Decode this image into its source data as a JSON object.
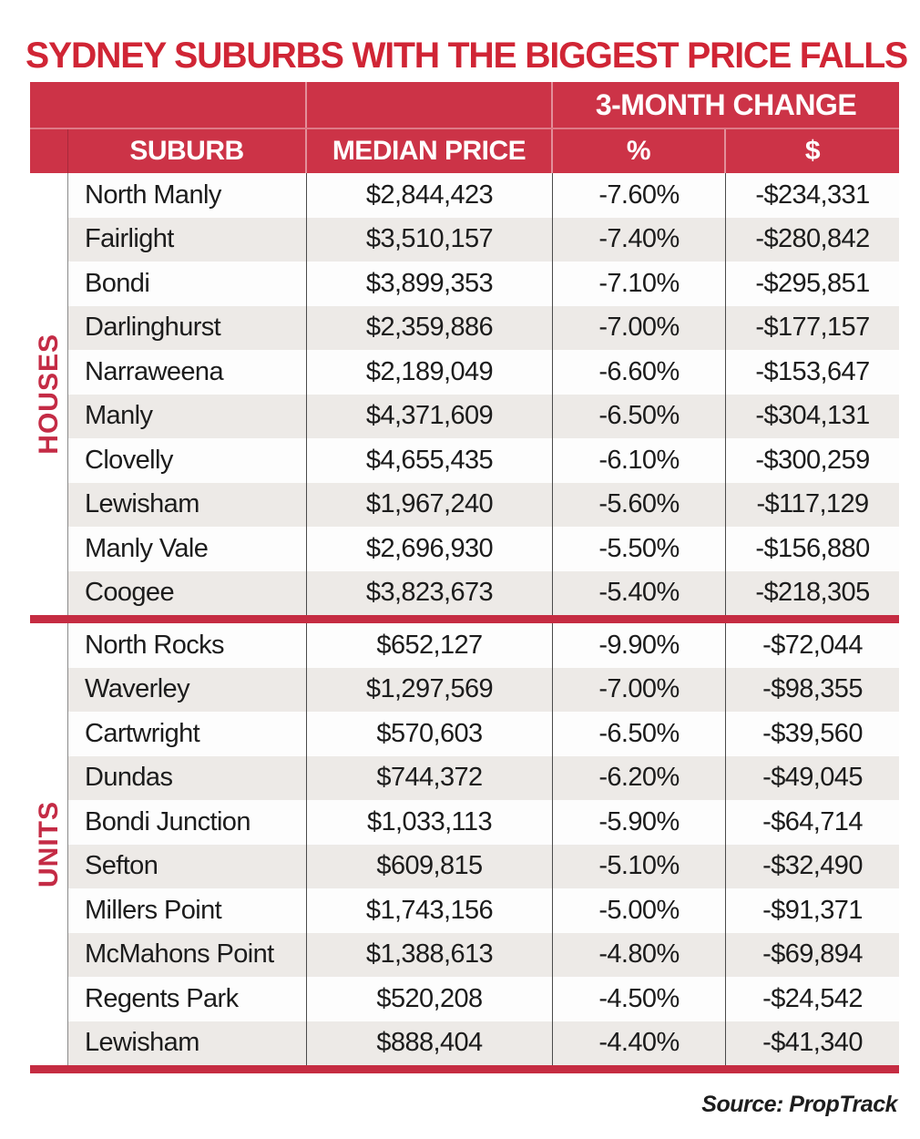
{
  "title": "SYDNEY SUBURBS WITH THE BIGGEST PRICE FALLS",
  "source": "Source: PropTrack",
  "colors": {
    "title_red": "#d02535",
    "header_red": "#cc3347",
    "bar_red": "#c52c42",
    "section_label_red": "#c42b45",
    "row_alt_grey": "#edeae7",
    "text_dark": "#1c1c1c"
  },
  "chart_data": {
    "type": "table",
    "title": "SYDNEY SUBURBS WITH THE BIGGEST PRICE FALLS",
    "headers": {
      "suburb": "SUBURB",
      "median_price": "MEDIAN PRICE",
      "change_group": "3-MONTH CHANGE",
      "pct": "%",
      "dollar": "$"
    },
    "sections": [
      {
        "label": "HOUSES",
        "rows": [
          {
            "suburb": "North Manly",
            "median_price": "$2,844,423",
            "pct_change": "-7.60%",
            "dollar_change": "-$234,331"
          },
          {
            "suburb": "Fairlight",
            "median_price": "$3,510,157",
            "pct_change": "-7.40%",
            "dollar_change": "-$280,842"
          },
          {
            "suburb": "Bondi",
            "median_price": "$3,899,353",
            "pct_change": "-7.10%",
            "dollar_change": "-$295,851"
          },
          {
            "suburb": "Darlinghurst",
            "median_price": "$2,359,886",
            "pct_change": "-7.00%",
            "dollar_change": "-$177,157"
          },
          {
            "suburb": "Narraweena",
            "median_price": "$2,189,049",
            "pct_change": "-6.60%",
            "dollar_change": "-$153,647"
          },
          {
            "suburb": "Manly",
            "median_price": "$4,371,609",
            "pct_change": "-6.50%",
            "dollar_change": "-$304,131"
          },
          {
            "suburb": "Clovelly",
            "median_price": "$4,655,435",
            "pct_change": "-6.10%",
            "dollar_change": "-$300,259"
          },
          {
            "suburb": "Lewisham",
            "median_price": "$1,967,240",
            "pct_change": "-5.60%",
            "dollar_change": "-$117,129"
          },
          {
            "suburb": "Manly Vale",
            "median_price": "$2,696,930",
            "pct_change": "-5.50%",
            "dollar_change": "-$156,880"
          },
          {
            "suburb": "Coogee",
            "median_price": "$3,823,673",
            "pct_change": "-5.40%",
            "dollar_change": "-$218,305"
          }
        ]
      },
      {
        "label": "UNITS",
        "rows": [
          {
            "suburb": "North Rocks",
            "median_price": "$652,127",
            "pct_change": "-9.90%",
            "dollar_change": "-$72,044"
          },
          {
            "suburb": "Waverley",
            "median_price": "$1,297,569",
            "pct_change": "-7.00%",
            "dollar_change": "-$98,355"
          },
          {
            "suburb": "Cartwright",
            "median_price": "$570,603",
            "pct_change": "-6.50%",
            "dollar_change": "-$39,560"
          },
          {
            "suburb": "Dundas",
            "median_price": "$744,372",
            "pct_change": "-6.20%",
            "dollar_change": "-$49,045"
          },
          {
            "suburb": "Bondi Junction",
            "median_price": "$1,033,113",
            "pct_change": "-5.90%",
            "dollar_change": "-$64,714"
          },
          {
            "suburb": "Sefton",
            "median_price": "$609,815",
            "pct_change": "-5.10%",
            "dollar_change": "-$32,490"
          },
          {
            "suburb": "Millers Point",
            "median_price": "$1,743,156",
            "pct_change": "-5.00%",
            "dollar_change": "-$91,371"
          },
          {
            "suburb": "McMahons Point",
            "median_price": "$1,388,613",
            "pct_change": "-4.80%",
            "dollar_change": "-$69,894"
          },
          {
            "suburb": "Regents Park",
            "median_price": "$520,208",
            "pct_change": "-4.50%",
            "dollar_change": "-$24,542"
          },
          {
            "suburb": "Lewisham",
            "median_price": "$888,404",
            "pct_change": "-4.40%",
            "dollar_change": "-$41,340"
          }
        ]
      }
    ],
    "source": "Source: PropTrack"
  }
}
